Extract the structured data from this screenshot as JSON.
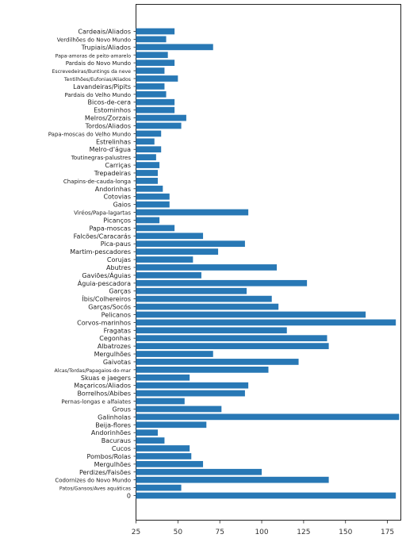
{
  "chart_data": {
    "type": "bar",
    "orientation": "horizontal",
    "title": "",
    "xlabel": "",
    "ylabel": "",
    "color": "#2878b5",
    "grid": false,
    "xlim": [
      25,
      183
    ],
    "xticks": [
      "25",
      "50",
      "75",
      "100",
      "125",
      "150",
      "175"
    ],
    "categories": [
      "Cardeais/Aliados",
      "Verdilhões do Novo Mundo",
      "Trupiais/Aliados",
      "Papa-amoras de peito-amarelo",
      "Pardais do Novo Mundo",
      "Escrevedeiras/Buntings da neve",
      "Tentilhões/Eufonias/Aliados",
      "Lavandeiras/Pipits",
      "Pardais do Velho Mundo",
      "Bicos-de-cera",
      "Estorninhos",
      "Melros/Zorzais",
      "Tordos/Aliados",
      "Papa-moscas do Velho Mundo",
      "Estrelinhas",
      "Melro-d'água",
      "Toutinegras-palustres",
      "Carriças",
      "Trepadeiras",
      "Chapins-de-cauda-longa",
      "Andorinhas",
      "Cotovias",
      "Gaios",
      "Viréos/Papa-lagartas",
      "Picanços",
      "Papa-moscas",
      "Falcões/Caracarás",
      "Pica-paus",
      "Martim-pescadores",
      "Corujas",
      "Abutres",
      "Gaviões/Águias",
      "Águia-pescadora",
      "Garças",
      "Íbis/Colhereiros",
      "Garças/Socós",
      "Pelicanos",
      "Corvos-marinhos",
      "Fragatas",
      "Cegonhas",
      "Albatrozes",
      "Mergulhões",
      "Gaivotas",
      "Alcas/Tordas/Papagaios-do-mar",
      "Skuas e jaegers",
      "Maçaricos/Aliados",
      "Borrelhos/Abibes",
      "Pernas-longas e alfaiates",
      "Grous",
      "Galinholas",
      "Beija-flores",
      "Andorinhões",
      "Bacuraus",
      "Cucos",
      "Pombos/Rolas",
      "Mergulhões",
      "Perdizes/Faisões",
      "Codornizes do Novo Mundo",
      "Patos/Gansos/Aves aquáticas",
      "0"
    ],
    "values": [
      48,
      43,
      71,
      44,
      48,
      42,
      50,
      42,
      43,
      48,
      48,
      55,
      52,
      40,
      36,
      40,
      37,
      39,
      38,
      38,
      41,
      45,
      45,
      92,
      39,
      48,
      65,
      90,
      74,
      59,
      109,
      64,
      127,
      91,
      106,
      110,
      162,
      180,
      115,
      139,
      140,
      71,
      122,
      104,
      57,
      92,
      90,
      54,
      76,
      182,
      67,
      38,
      42,
      57,
      58,
      65,
      100,
      140,
      52,
      180
    ]
  }
}
